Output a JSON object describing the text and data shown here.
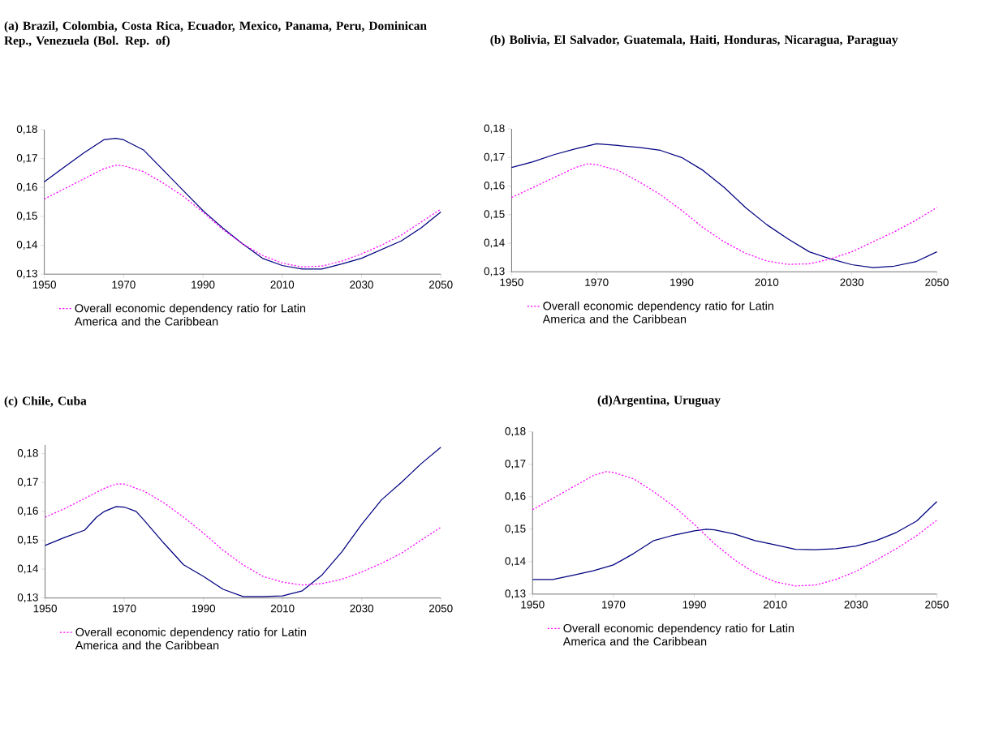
{
  "chart_data": [
    {
      "type": "line",
      "title": "(a)  Brazil, Colombia, Costa Rica, Ecuador, Mexico, Panama, Peru, Dominican Rep., Venezuela (Bol. Rep. of)",
      "legend": "bottom",
      "xlim": [
        1950,
        2050
      ],
      "ylim": [
        0.13,
        0.18
      ],
      "xticks": [
        1950,
        1970,
        1990,
        2010,
        2030,
        2050
      ],
      "yticks": [
        {
          "value": 0.13,
          "label": "0,13"
        },
        {
          "value": 0.14,
          "label": "0,14"
        },
        {
          "value": 0.15,
          "label": "0,15"
        },
        {
          "value": 0.16,
          "label": "0,16"
        },
        {
          "value": 0.17,
          "label": "0,17"
        },
        {
          "value": 0.18,
          "label": "0,18"
        }
      ],
      "series": [
        {
          "color": "#000080",
          "line_style": "solid",
          "x": [
            1950,
            1955,
            1960,
            1965,
            1968,
            1970,
            1975,
            1980,
            1985,
            1990,
            1995,
            2000,
            2005,
            2010,
            2015,
            2020,
            2025,
            2030,
            2035,
            2040,
            2045,
            2050
          ],
          "values": [
            0.162,
            0.167,
            0.172,
            0.1765,
            0.177,
            0.1765,
            0.173,
            0.166,
            0.159,
            0.152,
            0.146,
            0.1405,
            0.1355,
            0.133,
            0.1318,
            0.1318,
            0.1335,
            0.1355,
            0.1385,
            0.1415,
            0.146,
            0.1515
          ]
        },
        {
          "name": "Overall economic dependency ratio for Latin America and the Caribbean",
          "color": "#ff00ff",
          "line_style": "dotted",
          "x": [
            1950,
            1955,
            1960,
            1965,
            1968,
            1970,
            1975,
            1980,
            1985,
            1990,
            1995,
            2000,
            2005,
            2010,
            2015,
            2020,
            2025,
            2030,
            2035,
            2040,
            2045,
            2050
          ],
          "values": [
            0.156,
            0.1595,
            0.163,
            0.1665,
            0.1677,
            0.1675,
            0.1655,
            0.1615,
            0.157,
            0.1515,
            0.1455,
            0.1405,
            0.1365,
            0.1338,
            0.1325,
            0.1328,
            0.1345,
            0.137,
            0.14,
            0.1435,
            0.148,
            0.1525
          ]
        }
      ]
    },
    {
      "type": "line",
      "title": "(b)  Bolivia, El Salvador, Guatemala, Haiti, Honduras, Nicaragua, Paraguay",
      "legend": "bottom",
      "xlim": [
        1950,
        2050
      ],
      "ylim": [
        0.13,
        0.18
      ],
      "xticks": [
        1950,
        1970,
        1990,
        2010,
        2030,
        2050
      ],
      "yticks": [
        {
          "value": 0.13,
          "label": "0,13"
        },
        {
          "value": 0.14,
          "label": "0,14"
        },
        {
          "value": 0.15,
          "label": "0,15"
        },
        {
          "value": 0.16,
          "label": "0,16"
        },
        {
          "value": 0.17,
          "label": "0,17"
        },
        {
          "value": 0.18,
          "label": "0,18"
        }
      ],
      "series": [
        {
          "color": "#000080",
          "line_style": "solid",
          "x": [
            1950,
            1955,
            1960,
            1965,
            1970,
            1975,
            1980,
            1985,
            1990,
            1995,
            2000,
            2005,
            2010,
            2015,
            2020,
            2025,
            2030,
            2035,
            2040,
            2045,
            2050
          ],
          "values": [
            0.1665,
            0.1685,
            0.171,
            0.173,
            0.1748,
            0.1742,
            0.1735,
            0.1725,
            0.17,
            0.1655,
            0.1595,
            0.1525,
            0.1465,
            0.1415,
            0.137,
            0.1345,
            0.1325,
            0.1315,
            0.132,
            0.1335,
            0.137
          ]
        },
        {
          "name": "Overall economic dependency ratio for Latin America and the Caribbean",
          "color": "#ff00ff",
          "line_style": "dotted",
          "x": [
            1950,
            1955,
            1960,
            1965,
            1968,
            1970,
            1975,
            1980,
            1985,
            1990,
            1995,
            2000,
            2005,
            2010,
            2015,
            2020,
            2025,
            2030,
            2035,
            2040,
            2045,
            2050
          ],
          "values": [
            0.156,
            0.1595,
            0.163,
            0.1665,
            0.1678,
            0.1675,
            0.1655,
            0.1615,
            0.157,
            0.1515,
            0.1455,
            0.1405,
            0.1365,
            0.1338,
            0.1326,
            0.1328,
            0.1345,
            0.137,
            0.1405,
            0.144,
            0.148,
            0.1525
          ]
        }
      ]
    },
    {
      "type": "line",
      "title": "(c) Chile, Cuba",
      "legend": "bottom",
      "xlim": [
        1950,
        2050
      ],
      "ylim": [
        0.13,
        0.183
      ],
      "xticks": [
        1950,
        1970,
        1990,
        2010,
        2030,
        2050
      ],
      "yticks": [
        {
          "value": 0.13,
          "label": "0,13"
        },
        {
          "value": 0.14,
          "label": "0,14"
        },
        {
          "value": 0.15,
          "label": "0,15"
        },
        {
          "value": 0.16,
          "label": "0,16"
        },
        {
          "value": 0.17,
          "label": "0,17"
        },
        {
          "value": 0.18,
          "label": "0,18"
        }
      ],
      "series": [
        {
          "color": "#000080",
          "line_style": "solid",
          "x": [
            1950,
            1955,
            1960,
            1963,
            1965,
            1968,
            1970,
            1973,
            1975,
            1980,
            1985,
            1990,
            1995,
            2000,
            2005,
            2010,
            2015,
            2020,
            2025,
            2030,
            2035,
            2040,
            2045,
            2050
          ],
          "values": [
            0.1482,
            0.151,
            0.1535,
            0.158,
            0.16,
            0.1617,
            0.1615,
            0.16,
            0.157,
            0.149,
            0.1415,
            0.1375,
            0.133,
            0.1305,
            0.1305,
            0.1307,
            0.1325,
            0.138,
            0.146,
            0.1555,
            0.164,
            0.17,
            0.1765,
            0.1822
          ]
        },
        {
          "name": "Overall economic dependency ratio for Latin America and the Caribbean",
          "color": "#ff00ff",
          "line_style": "dotted",
          "x": [
            1950,
            1955,
            1960,
            1965,
            1968,
            1970,
            1975,
            1980,
            1985,
            1990,
            1995,
            2000,
            2005,
            2010,
            2015,
            2020,
            2025,
            2030,
            2035,
            2040,
            2045,
            2050
          ],
          "values": [
            0.158,
            0.161,
            0.1645,
            0.168,
            0.1695,
            0.1695,
            0.167,
            0.163,
            0.158,
            0.1525,
            0.1465,
            0.1415,
            0.1375,
            0.1355,
            0.1345,
            0.135,
            0.1365,
            0.139,
            0.142,
            0.1455,
            0.15,
            0.1545
          ]
        }
      ]
    },
    {
      "type": "line",
      "title": "(d)Argentina, Uruguay",
      "legend": "bottom",
      "xlim": [
        1950,
        2050
      ],
      "ylim": [
        0.13,
        0.18
      ],
      "xticks": [
        1950,
        1970,
        1990,
        2010,
        2030,
        2050
      ],
      "yticks": [
        {
          "value": 0.13,
          "label": "0,13"
        },
        {
          "value": 0.14,
          "label": "0,14"
        },
        {
          "value": 0.15,
          "label": "0,15"
        },
        {
          "value": 0.16,
          "label": "0,16"
        },
        {
          "value": 0.17,
          "label": "0,17"
        },
        {
          "value": 0.18,
          "label": "0,18"
        }
      ],
      "series": [
        {
          "color": "#000080",
          "line_style": "solid",
          "x": [
            1950,
            1955,
            1960,
            1965,
            1970,
            1975,
            1980,
            1985,
            1990,
            1993,
            1995,
            2000,
            2005,
            2010,
            2015,
            2020,
            2025,
            2030,
            2035,
            2040,
            2045,
            2050
          ],
          "values": [
            0.1345,
            0.1345,
            0.1358,
            0.1372,
            0.139,
            0.1425,
            0.1465,
            0.1482,
            0.1495,
            0.15,
            0.1498,
            0.1485,
            0.1465,
            0.1452,
            0.1438,
            0.1437,
            0.144,
            0.1448,
            0.1465,
            0.149,
            0.1525,
            0.1585
          ]
        },
        {
          "name": "Overall economic dependency ratio for Latin America and the Caribbean",
          "color": "#ff00ff",
          "line_style": "dotted",
          "x": [
            1950,
            1955,
            1960,
            1965,
            1968,
            1970,
            1975,
            1980,
            1985,
            1990,
            1995,
            2000,
            2005,
            2010,
            2015,
            2020,
            2025,
            2030,
            2035,
            2040,
            2045,
            2050
          ],
          "values": [
            0.156,
            0.1595,
            0.163,
            0.1665,
            0.1677,
            0.1675,
            0.1655,
            0.1615,
            0.157,
            0.1515,
            0.1455,
            0.1405,
            0.1365,
            0.1338,
            0.1325,
            0.1328,
            0.1345,
            0.137,
            0.1405,
            0.144,
            0.148,
            0.1528
          ]
        }
      ]
    }
  ]
}
